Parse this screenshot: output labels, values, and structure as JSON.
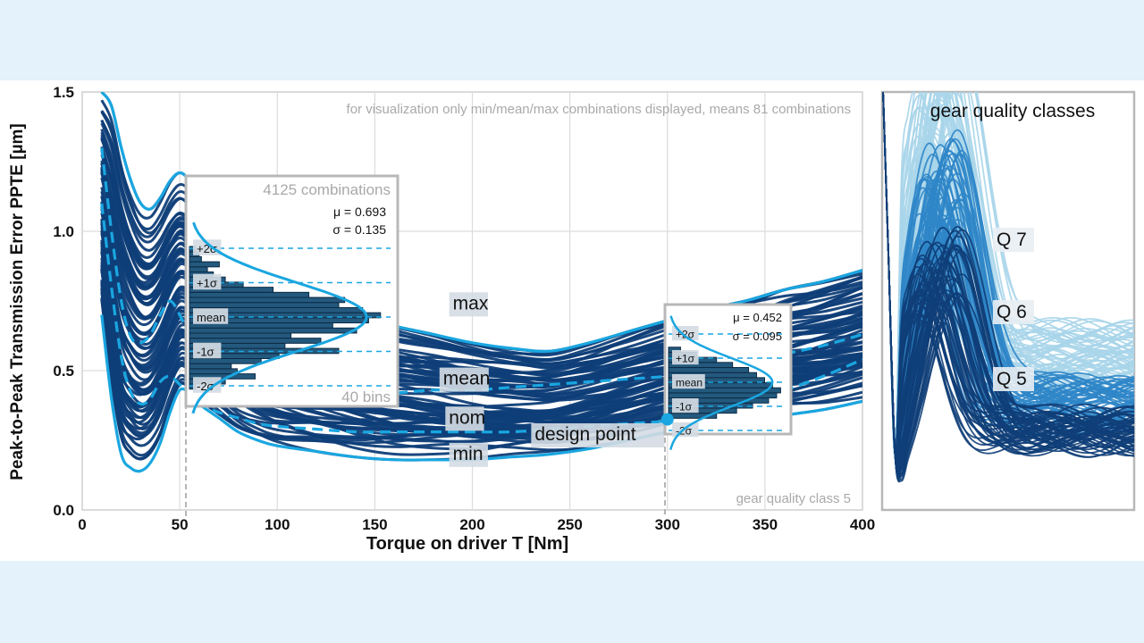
{
  "chart_data": [
    {
      "type": "line",
      "id": "ppte-vs-torque",
      "title": "",
      "note": "for visualization only min/mean/max combinations displayed, means 81 combinations",
      "corner_label": "gear quality class 5",
      "xlabel": "Torque on driver T [Nm]",
      "ylabel": "Peak-to-Peak Transmission Error PPTE [µm]",
      "xlim": [
        0,
        400
      ],
      "ylim": [
        0,
        1.5
      ],
      "xticks": [
        "0",
        "50",
        "100",
        "150",
        "200",
        "250",
        "300",
        "350",
        "400"
      ],
      "yticks": [
        "0.0",
        "0.5",
        "1.0",
        "1.5"
      ],
      "grid": true,
      "x": [
        10,
        15,
        20,
        25,
        30,
        35,
        40,
        45,
        50,
        55,
        60,
        70,
        80,
        90,
        100,
        120,
        140,
        160,
        180,
        200,
        220,
        240,
        260,
        280,
        300,
        320,
        340,
        360,
        380,
        400
      ],
      "series": [
        {
          "name": "max",
          "color": "#1aa6e0",
          "dash": "solid",
          "values": [
            1.5,
            1.45,
            1.3,
            1.18,
            1.1,
            1.08,
            1.12,
            1.18,
            1.21,
            1.18,
            1.1,
            0.98,
            0.9,
            0.84,
            0.8,
            0.74,
            0.7,
            0.66,
            0.63,
            0.6,
            0.58,
            0.57,
            0.6,
            0.64,
            0.68,
            0.72,
            0.75,
            0.79,
            0.82,
            0.86
          ]
        },
        {
          "name": "mean",
          "color": "#1aa6e0",
          "dash": "dashed",
          "values": [
            1.3,
            1.0,
            0.75,
            0.62,
            0.6,
            0.63,
            0.7,
            0.75,
            0.7,
            0.62,
            0.56,
            0.5,
            0.46,
            0.44,
            0.43,
            0.42,
            0.42,
            0.42,
            0.43,
            0.43,
            0.44,
            0.45,
            0.46,
            0.47,
            0.48,
            0.5,
            0.53,
            0.56,
            0.59,
            0.63
          ]
        },
        {
          "name": "nom",
          "color": "#1aa6e0",
          "dash": "dashed",
          "values": [
            1.1,
            0.8,
            0.55,
            0.42,
            0.38,
            0.4,
            0.46,
            0.48,
            0.45,
            0.42,
            0.38,
            0.35,
            0.33,
            0.31,
            0.3,
            0.29,
            0.28,
            0.28,
            0.28,
            0.28,
            0.28,
            0.29,
            0.3,
            0.31,
            0.32,
            0.35,
            0.39,
            0.43,
            0.48,
            0.54
          ]
        },
        {
          "name": "min",
          "color": "#1aa6e0",
          "dash": "solid",
          "values": [
            0.7,
            0.4,
            0.2,
            0.15,
            0.14,
            0.17,
            0.24,
            0.35,
            0.43,
            0.42,
            0.38,
            0.33,
            0.28,
            0.25,
            0.23,
            0.21,
            0.19,
            0.18,
            0.18,
            0.18,
            0.19,
            0.2,
            0.22,
            0.25,
            0.28,
            0.3,
            0.32,
            0.34,
            0.36,
            0.39
          ]
        }
      ],
      "annotations": [
        {
          "text": "max",
          "x": 190,
          "y": 0.72
        },
        {
          "text": "mean",
          "x": 185,
          "y": 0.45
        },
        {
          "text": "nom",
          "x": 188,
          "y": 0.31
        },
        {
          "text": "min",
          "x": 190,
          "y": 0.18
        },
        {
          "text": "design point",
          "x": 232,
          "y": 0.25
        }
      ],
      "design_point": {
        "label": "design point",
        "x": 300,
        "y": 0.325
      },
      "ensemble": {
        "description": "81 combinations",
        "color": "#0f3e78"
      }
    },
    {
      "type": "bar",
      "id": "hist-low-torque",
      "orientation": "horizontal",
      "title": "4125 combinations",
      "bins_label": "40 bins",
      "at_torque": 57,
      "mu_label": "μ = 0.693",
      "sigma_label": "σ = 0.135",
      "mu": 0.693,
      "sigma": 0.135,
      "sigma_labels": [
        "+2σ",
        "+1σ",
        "mean",
        "-1σ",
        "-2σ"
      ],
      "bin_centers": [
        0.42,
        0.44,
        0.46,
        0.48,
        0.5,
        0.52,
        0.54,
        0.56,
        0.58,
        0.6,
        0.62,
        0.64,
        0.66,
        0.68,
        0.7,
        0.72,
        0.74,
        0.76,
        0.78,
        0.8,
        0.82,
        0.84,
        0.86,
        0.88,
        0.9,
        0.92,
        0.94,
        0.96
      ],
      "counts": [
        5,
        30,
        55,
        40,
        35,
        60,
        75,
        125,
        80,
        110,
        85,
        140,
        120,
        150,
        160,
        145,
        125,
        130,
        100,
        70,
        45,
        30,
        20,
        15,
        25,
        10,
        8,
        5
      ]
    },
    {
      "type": "bar",
      "id": "hist-design-point",
      "orientation": "horizontal",
      "at_torque": 300,
      "mu_label": "μ = 0.452",
      "sigma_label": "σ = 0.095",
      "mu": 0.452,
      "sigma": 0.095,
      "sigma_labels": [
        "+2σ",
        "+1σ",
        "mean",
        "-1σ",
        "-2σ"
      ],
      "bin_centers": [
        0.32,
        0.34,
        0.36,
        0.38,
        0.4,
        0.42,
        0.44,
        0.46,
        0.48,
        0.5,
        0.52,
        0.54,
        0.56,
        0.58
      ],
      "counts": [
        60,
        85,
        105,
        125,
        135,
        140,
        130,
        120,
        110,
        100,
        80,
        60,
        35,
        15
      ]
    },
    {
      "type": "line",
      "id": "gear-quality-classes",
      "title": "gear quality classes",
      "classes": [
        {
          "name": "Q 7",
          "color": "#a8d5ea"
        },
        {
          "name": "Q 6",
          "color": "#2f86c8"
        },
        {
          "name": "Q 5",
          "color": "#0f3e78"
        }
      ]
    }
  ]
}
